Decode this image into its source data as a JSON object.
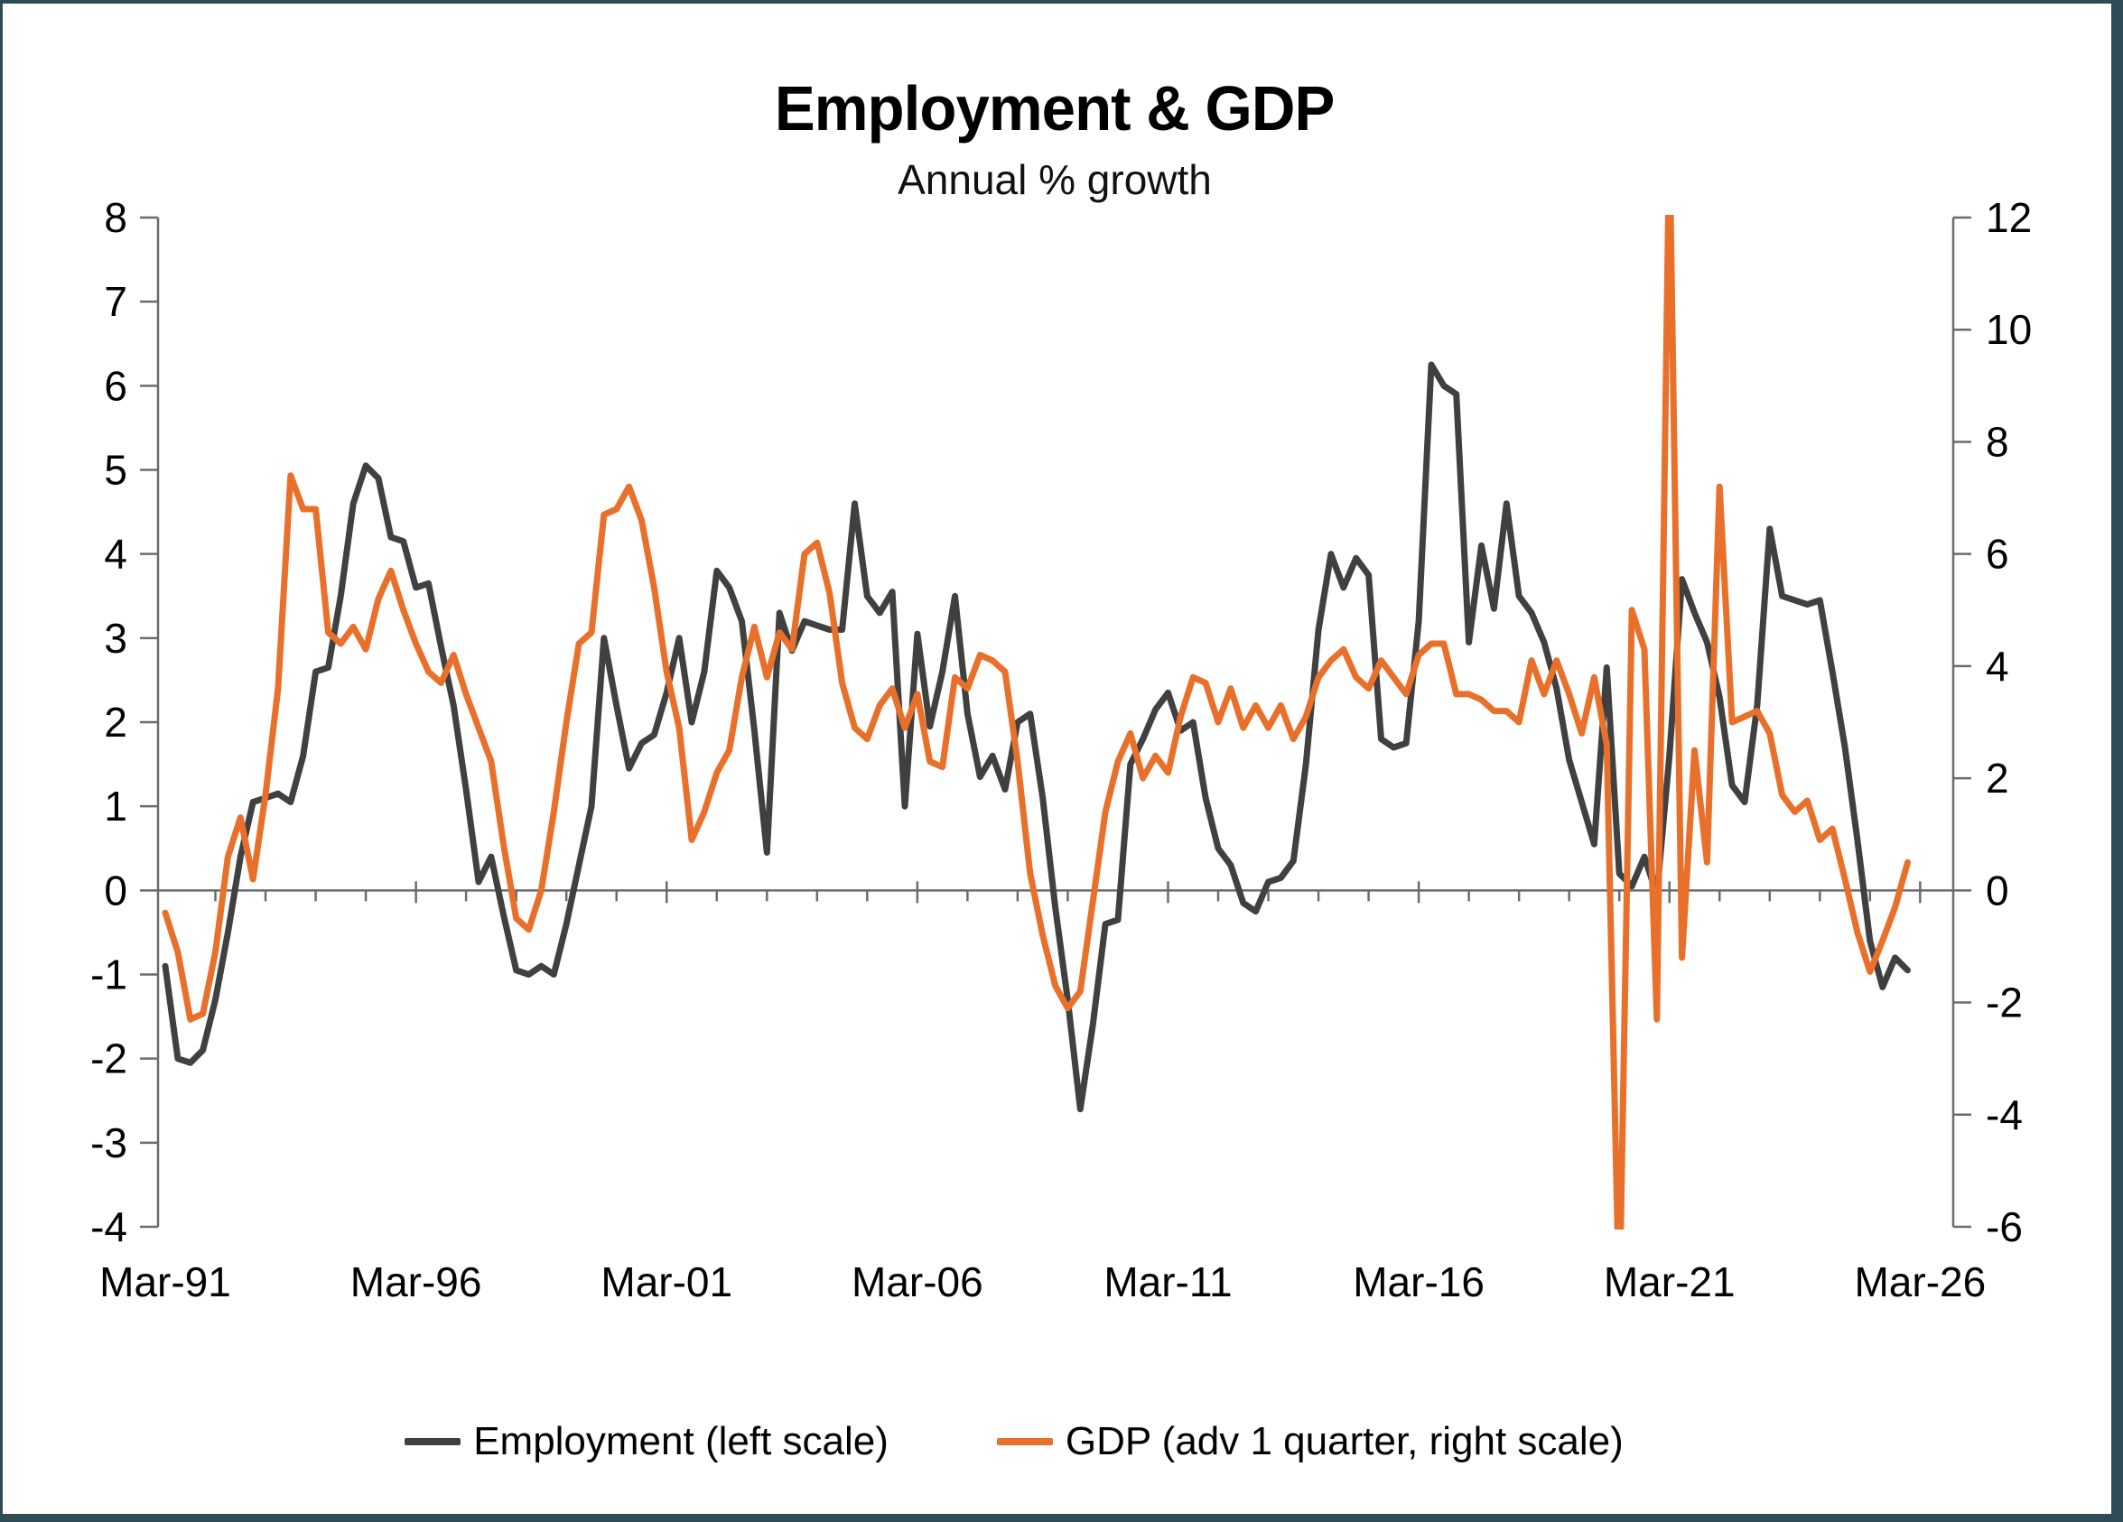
{
  "title": "Employment & GDP",
  "subtitle": "Annual % growth",
  "colors": {
    "employment": "#404040",
    "gdp": "#E8702A",
    "axis": "#6b6b6b",
    "label": "#000000",
    "frame_border": "#2F4B56"
  },
  "legend": {
    "items": [
      {
        "label": "Employment (left scale)",
        "series": "employment"
      },
      {
        "label": "GDP (adv 1 quarter, right scale)",
        "series": "gdp"
      }
    ]
  },
  "chart_data": {
    "type": "line",
    "title": "Employment & GDP",
    "subtitle": "Annual % growth",
    "frequency": "quarterly",
    "x_start_label": "Mar-91",
    "x_end_label": "Mar-26",
    "x_tick_labels": [
      "Mar-91",
      "Mar-96",
      "Mar-01",
      "Mar-06",
      "Mar-11",
      "Mar-16",
      "Mar-21",
      "Mar-26"
    ],
    "x_ticks_every_quarters": 20,
    "minor_x_ticks_every_quarters": 4,
    "left_axis": {
      "min": -4,
      "max": 8,
      "step": 1,
      "ticks": [
        8,
        7,
        6,
        5,
        4,
        3,
        2,
        1,
        0,
        -1,
        -2,
        -3,
        -4
      ]
    },
    "right_axis": {
      "min": -6,
      "max": 12,
      "step": 2,
      "ticks": [
        12,
        10,
        8,
        6,
        4,
        2,
        0,
        -2,
        -4,
        -6
      ]
    },
    "grid": "zero-line-only",
    "legend_position": "bottom",
    "clip_note": "GDP line is clipped at plot top (+12) in Mar-21 and at plot bottom (-6) in Mar-20",
    "series": [
      {
        "name": "Employment (left scale)",
        "axis": "left",
        "color": "#404040",
        "values": [
          -0.9,
          -2.0,
          -2.05,
          -1.9,
          -1.3,
          -0.5,
          0.4,
          1.05,
          1.1,
          1.15,
          1.05,
          1.6,
          2.6,
          2.65,
          3.5,
          4.6,
          5.05,
          4.9,
          4.2,
          4.15,
          3.6,
          3.65,
          2.9,
          2.2,
          1.2,
          0.1,
          0.4,
          -0.3,
          -0.95,
          -1.0,
          -0.9,
          -1.0,
          -0.4,
          0.3,
          1.0,
          3.0,
          2.2,
          1.45,
          1.75,
          1.85,
          2.35,
          3.0,
          2.0,
          2.6,
          3.8,
          3.6,
          3.2,
          1.9,
          0.45,
          3.3,
          2.85,
          3.2,
          3.15,
          3.1,
          3.1,
          4.6,
          3.5,
          3.3,
          3.55,
          1.0,
          3.05,
          1.95,
          2.6,
          3.5,
          2.1,
          1.35,
          1.6,
          1.2,
          2.0,
          2.1,
          1.1,
          -0.2,
          -1.3,
          -2.6,
          -1.6,
          -0.4,
          -0.35,
          1.5,
          1.8,
          2.15,
          2.35,
          1.9,
          2.0,
          1.1,
          0.5,
          0.3,
          -0.15,
          -0.25,
          0.1,
          0.15,
          0.35,
          1.5,
          3.1,
          4.0,
          3.6,
          3.95,
          3.75,
          1.8,
          1.7,
          1.75,
          3.2,
          6.25,
          6.0,
          5.9,
          2.95,
          4.1,
          3.35,
          4.6,
          3.5,
          3.3,
          2.95,
          2.4,
          1.55,
          1.05,
          0.55,
          2.65,
          0.2,
          0.05,
          0.4,
          -0.05,
          1.6,
          3.7,
          3.3,
          2.95,
          2.3,
          1.25,
          1.05,
          2.2,
          4.3,
          3.5,
          3.45,
          3.4,
          3.45,
          2.6,
          1.7,
          0.6,
          -0.6,
          -1.15,
          -0.8,
          -0.95
        ]
      },
      {
        "name": "GDP (adv 1 quarter, right scale)",
        "axis": "right",
        "color": "#E8702A",
        "values": [
          -0.4,
          -1.1,
          -2.3,
          -2.2,
          -1.1,
          0.6,
          1.3,
          0.2,
          1.7,
          3.6,
          7.4,
          6.8,
          6.8,
          4.6,
          4.4,
          4.7,
          4.3,
          5.2,
          5.7,
          5.0,
          4.4,
          3.9,
          3.7,
          4.2,
          3.5,
          2.9,
          2.3,
          0.8,
          -0.5,
          -0.7,
          0.0,
          1.4,
          3.0,
          4.4,
          4.6,
          6.7,
          6.8,
          7.2,
          6.6,
          5.4,
          3.9,
          2.9,
          0.9,
          1.4,
          2.1,
          2.5,
          3.8,
          4.7,
          3.8,
          4.6,
          4.3,
          6.0,
          6.2,
          5.3,
          3.7,
          2.9,
          2.7,
          3.3,
          3.6,
          2.9,
          3.5,
          2.3,
          2.2,
          3.8,
          3.6,
          4.2,
          4.1,
          3.9,
          2.3,
          0.3,
          -0.8,
          -1.7,
          -2.1,
          -1.8,
          -0.2,
          1.4,
          2.3,
          2.8,
          2.0,
          2.4,
          2.1,
          3.1,
          3.8,
          3.7,
          3.0,
          3.6,
          2.9,
          3.3,
          2.9,
          3.3,
          2.7,
          3.1,
          3.8,
          4.1,
          4.3,
          3.8,
          3.6,
          4.1,
          3.8,
          3.5,
          4.2,
          4.4,
          4.4,
          3.5,
          3.5,
          3.4,
          3.2,
          3.2,
          3.0,
          4.1,
          3.5,
          4.1,
          3.5,
          2.8,
          3.8,
          2.6,
          -7.5,
          5.0,
          4.3,
          -2.3,
          13.5,
          -1.2,
          2.5,
          0.5,
          7.2,
          3.0,
          3.1,
          3.2,
          2.8,
          1.7,
          1.4,
          1.6,
          0.9,
          1.1,
          0.2,
          -0.75,
          -1.45,
          -0.9,
          -0.3,
          0.5
        ]
      }
    ]
  }
}
